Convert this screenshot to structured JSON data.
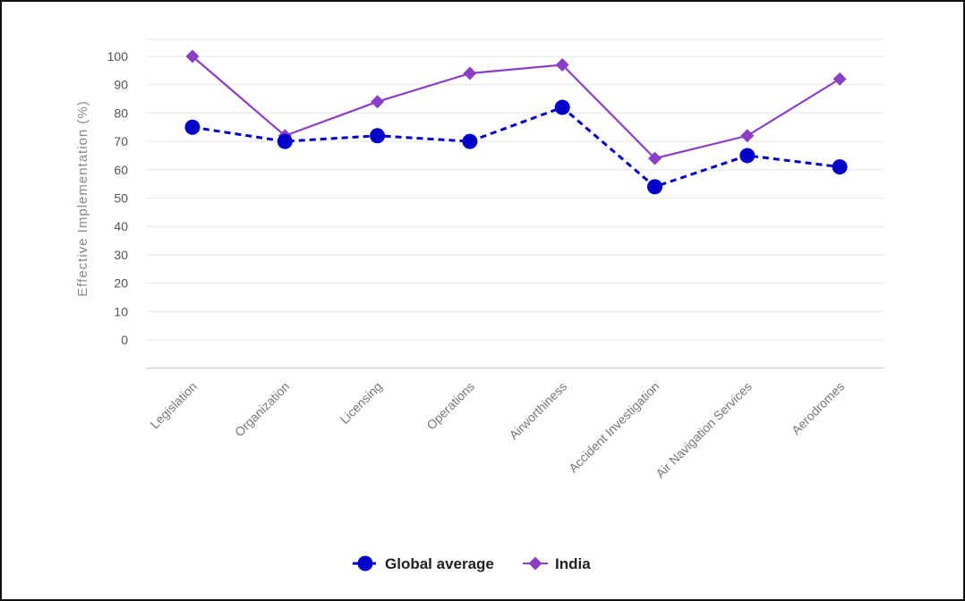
{
  "chart_data": {
    "type": "line",
    "ylabel": "Effective Implementation (%)",
    "xlabel": "",
    "ylim": [
      -10,
      105
    ],
    "yticks": [
      0,
      10,
      20,
      30,
      40,
      50,
      60,
      70,
      80,
      90,
      100
    ],
    "categories": [
      "Legislation",
      "Organization",
      "Licensing",
      "Operations",
      "Airworthiness",
      "Accident Investigation",
      "Air Navigation Services",
      "Aerodromes"
    ],
    "series": [
      {
        "name": "Global average",
        "color": "#0000c8",
        "marker": "circle",
        "line_style": "dashed",
        "values": [
          75,
          70,
          72,
          70,
          82,
          54,
          65,
          61
        ]
      },
      {
        "name": "India",
        "color": "#8a3fc6",
        "marker": "diamond",
        "line_style": "solid",
        "values": [
          100,
          72,
          84,
          94,
          97,
          64,
          72,
          92
        ]
      }
    ],
    "grid": true,
    "legend_position": "bottom-center"
  }
}
